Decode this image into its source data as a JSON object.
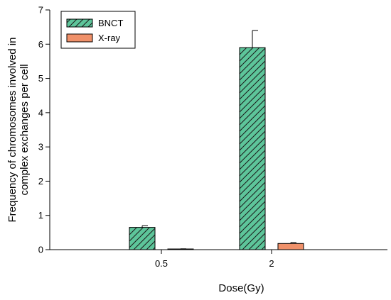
{
  "chart_data": {
    "type": "bar",
    "categories": [
      "0.5",
      "2"
    ],
    "series": [
      {
        "name": "BNCT",
        "values": [
          0.65,
          5.9
        ],
        "errors": [
          0.05,
          0.5
        ],
        "color": "#5dc59a",
        "pattern": "diagonal-hatch"
      },
      {
        "name": "X-ray",
        "values": [
          0.02,
          0.18
        ],
        "errors": [
          0.005,
          0.03
        ],
        "color": "#f0916a",
        "pattern": "solid"
      }
    ],
    "xlabel": "Dose(Gy)",
    "ylabel_lines": [
      "Frequency of chromosomes involved in",
      "complex exchanges per cell"
    ],
    "ylim": [
      0,
      7
    ],
    "yticks": [
      "0",
      "1",
      "2",
      "3",
      "4",
      "5",
      "6",
      "7"
    ],
    "grid": false,
    "legend_position": "top-left"
  }
}
